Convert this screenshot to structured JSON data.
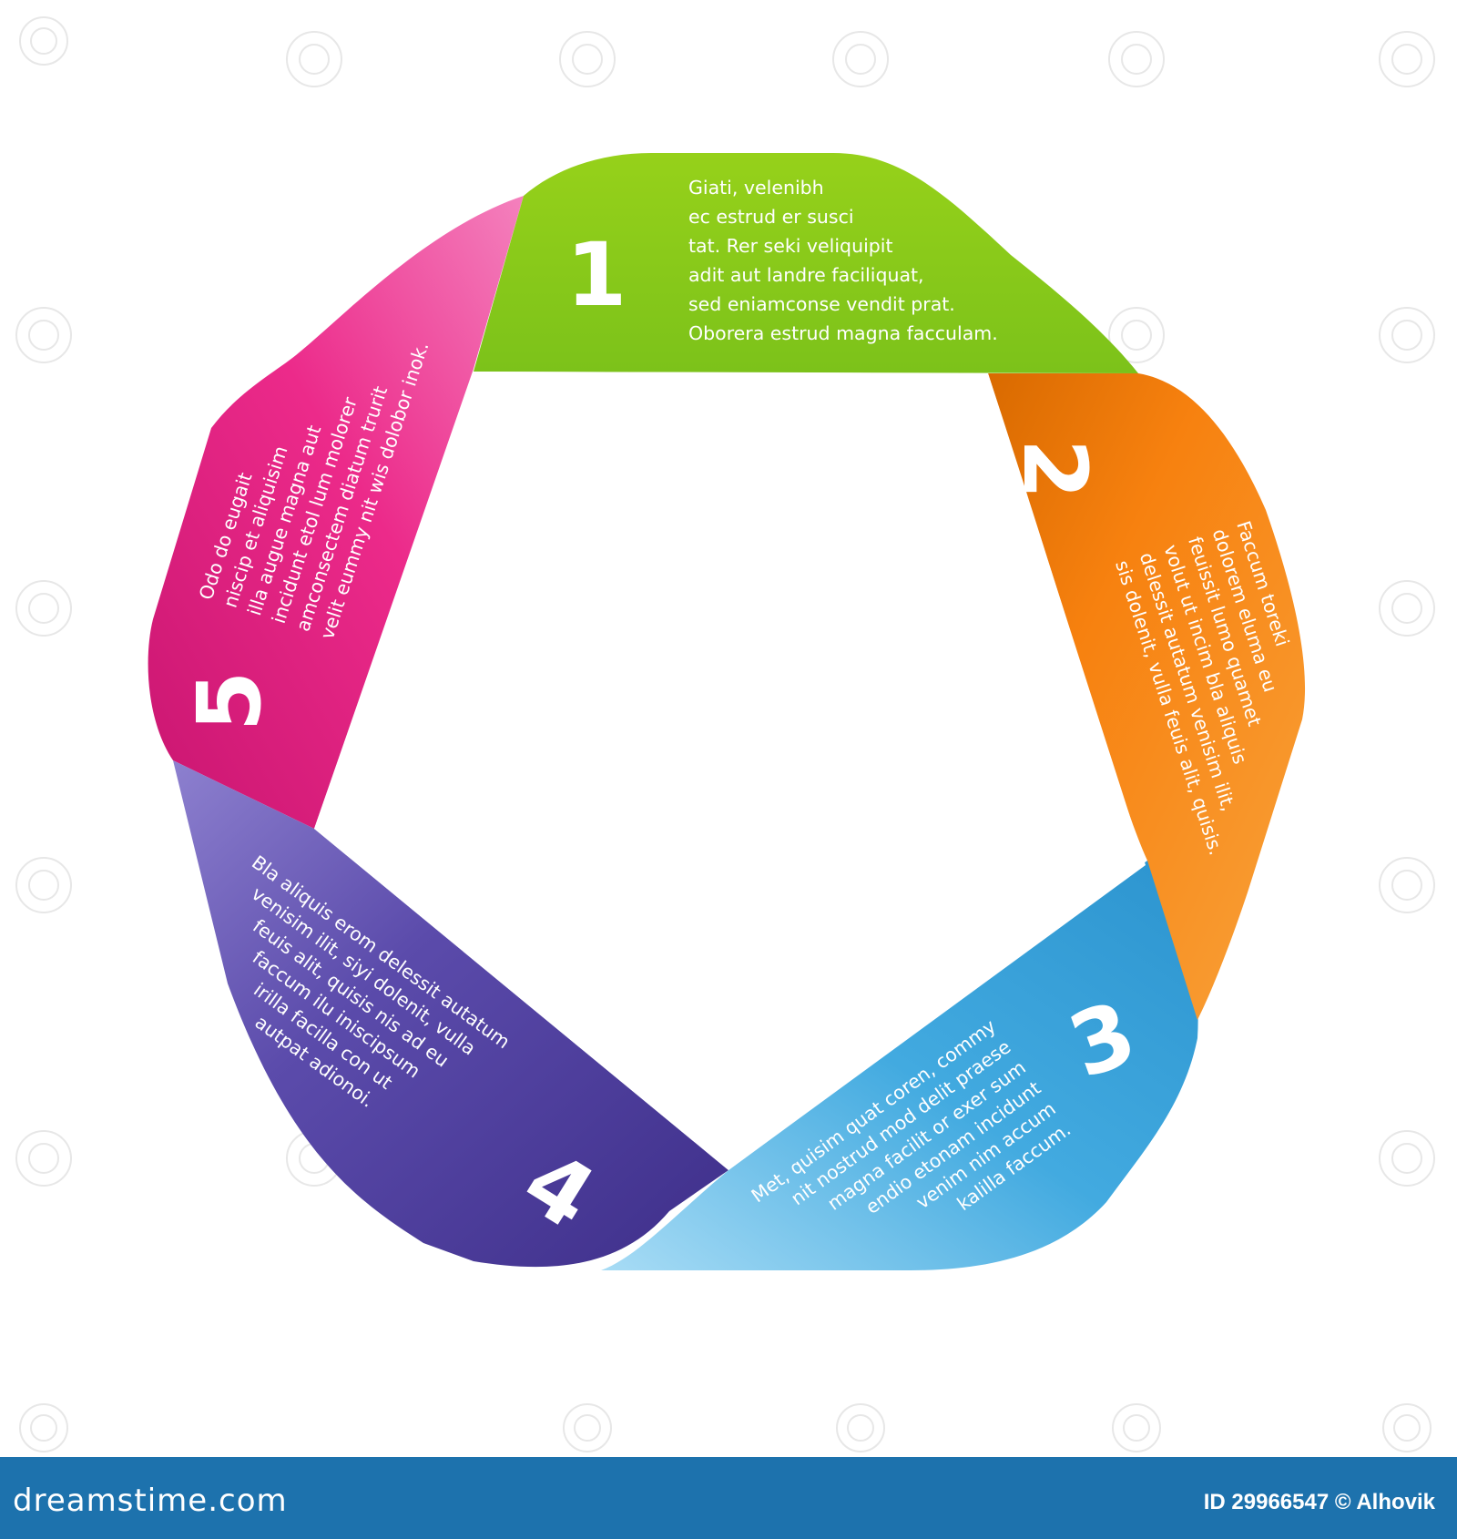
{
  "segments": [
    {
      "number": "1",
      "color": "#8ccd17",
      "lines": [
        "Giati, velenibh",
        "ec estrud er susci",
        "tat. Rer seki veliquipit",
        "adit aut landre faciliquat,",
        "sed eniamconse vendit prat.",
        "Oborera estrud magna facculam."
      ]
    },
    {
      "number": "2",
      "color": "#f57e10",
      "lines": [
        "Faccum toreki",
        "dolorem eluma eu",
        "feuissit lumo quamet",
        "volut ut incim bla aliquis",
        "delessit autatum venisim ilit,",
        "sis dolenit, vulla feuis alit, quisis."
      ]
    },
    {
      "number": "3",
      "color": "#3ea7de",
      "lines": [
        "Met, quisim quat coren, commy",
        "nit nostrud mod delit praese",
        "magna facilit or exer sum",
        "endio etonam incidunt",
        "venim nim accum",
        "kalilla faccum."
      ]
    },
    {
      "number": "4",
      "color": "#5a4aa8",
      "lines": [
        "Bla aliquis erom delessit autatum",
        "venisim ilit, siyi dolenit, vulla",
        "feuis alit, quisis nis ad eu",
        "faccum ilu iniscipsum",
        "irilla facilla con ut",
        "autpat adionoi."
      ]
    },
    {
      "number": "5",
      "color": "#ea2585",
      "lines": [
        "Odo do eugait",
        "niscip et aliquisim",
        "illa augue magna aut",
        "incidunt etol lum molorer",
        "amconsectem diatum trurit",
        "velit eummy nit wis dolobor inok."
      ]
    }
  ],
  "footer": {
    "brand": "dreamstime.com",
    "credit": "ID 29966547 © Alhovik"
  }
}
